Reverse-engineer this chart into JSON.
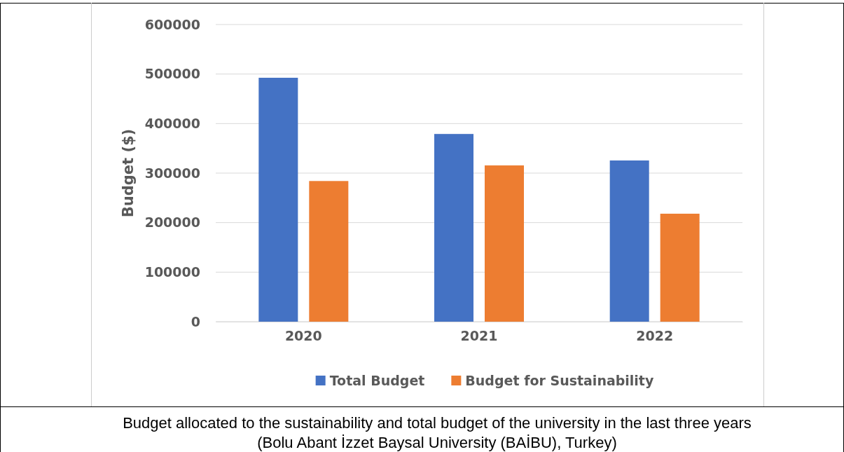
{
  "chart_data": {
    "type": "bar",
    "ylabel": "Budget ($)",
    "categories": [
      "2020",
      "2021",
      "2022"
    ],
    "series": [
      {
        "name": "Total Budget",
        "color": "#4472c4",
        "values": [
          492500,
          379000,
          325500
        ]
      },
      {
        "name": "Budget for Sustainability",
        "color": "#ed7d31",
        "values": [
          284000,
          315500,
          218000
        ]
      }
    ],
    "ylim": [
      0,
      600000
    ],
    "yticks": [
      0,
      100000,
      200000,
      300000,
      400000,
      500000,
      600000
    ],
    "grid": "y",
    "legend": "bottom",
    "annotations": [
      "Budget allocated to the sustainability and total budget of the university in the last three years",
      "(Bolu Abant İzzet Baysal University (BAİBU), Turkey)"
    ]
  }
}
